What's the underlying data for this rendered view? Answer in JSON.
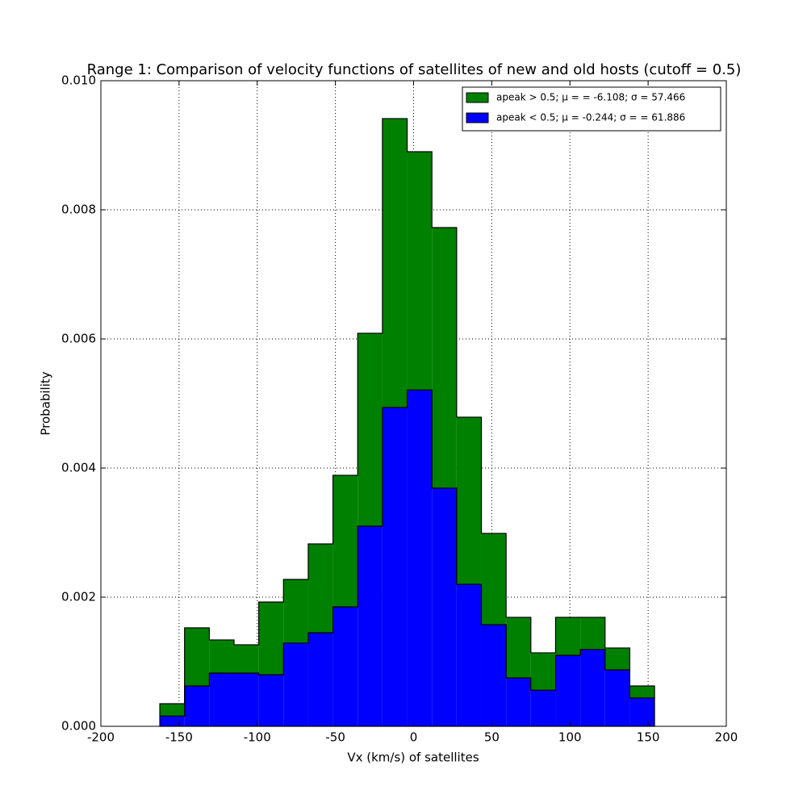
{
  "chart_data": {
    "type": "stacked-step-histogram",
    "title": "Range 1: Comparison of velocity functions of satellites of new and old hosts (cutoff = 0.5)",
    "x_label": "Vx (km/s) of satellites",
    "y_label": "Probability",
    "bins": [
      -162.3,
      -146.48,
      -130.66,
      -114.84,
      -99.02,
      -83.2,
      -67.38,
      -51.56,
      -35.74,
      -19.92,
      -4.1,
      11.72,
      27.54,
      43.36,
      59.18,
      75.0,
      90.82,
      106.64,
      122.46,
      138.28,
      154.1
    ],
    "series": [
      {
        "name": "apeak < 0.5; μ = -0.244; σ = = 61.886",
        "color": "#0000ff",
        "values": [
          0.00016,
          0.000625,
          0.000825,
          0.000825,
          0.0008,
          0.00129,
          0.00145,
          0.00185,
          0.0031,
          0.00494,
          0.00521,
          0.00369,
          0.0022,
          0.001575,
          0.00075,
          0.00056,
          0.0011,
          0.00119,
          0.000875,
          0.00044
        ]
      },
      {
        "name": "apeak > 0.5; μ = = -6.108; σ =  57.466",
        "color": "#008000",
        "values": [
          0.00019,
          0.0009,
          0.000513,
          0.000438,
          0.001125,
          0.000985,
          0.001375,
          0.002038,
          0.002988,
          0.004473,
          0.00369,
          0.004035,
          0.002588,
          0.001413,
          0.000938,
          0.000578,
          0.000588,
          0.000498,
          0.000338,
          0.000185
        ]
      }
    ],
    "legend_order": [
      1,
      0
    ],
    "legend_position": "upper right",
    "grid": true,
    "xlim": [
      -200,
      200
    ],
    "xticks": [
      -200,
      -150,
      -100,
      -50,
      0,
      50,
      100,
      150,
      200
    ],
    "ylim": [
      0,
      0.01
    ],
    "yticks": [
      {
        "value": 0,
        "label": "0.000"
      },
      {
        "value": 0.002,
        "label": "0.002"
      },
      {
        "value": 0.004,
        "label": "0.004"
      },
      {
        "value": 0.006,
        "label": "0.006"
      },
      {
        "value": 0.008,
        "label": "0.008"
      },
      {
        "value": 0.01,
        "label": "0.010"
      }
    ]
  }
}
